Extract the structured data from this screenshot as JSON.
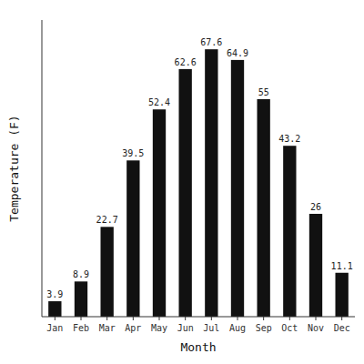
{
  "chart_data": {
    "type": "bar",
    "categories": [
      "Jan",
      "Feb",
      "Mar",
      "Apr",
      "May",
      "Jun",
      "Jul",
      "Aug",
      "Sep",
      "Oct",
      "Nov",
      "Dec"
    ],
    "values": [
      3.9,
      8.9,
      22.7,
      39.5,
      52.4,
      62.6,
      67.6,
      64.9,
      55.0,
      43.2,
      26.0,
      11.1
    ],
    "color": "#111111",
    "xlabel": "Month",
    "ylabel": "Temperature (F)",
    "ylim": [
      0,
      75
    ],
    "grid": false,
    "data_labels": true,
    "tick_labels": "x"
  }
}
